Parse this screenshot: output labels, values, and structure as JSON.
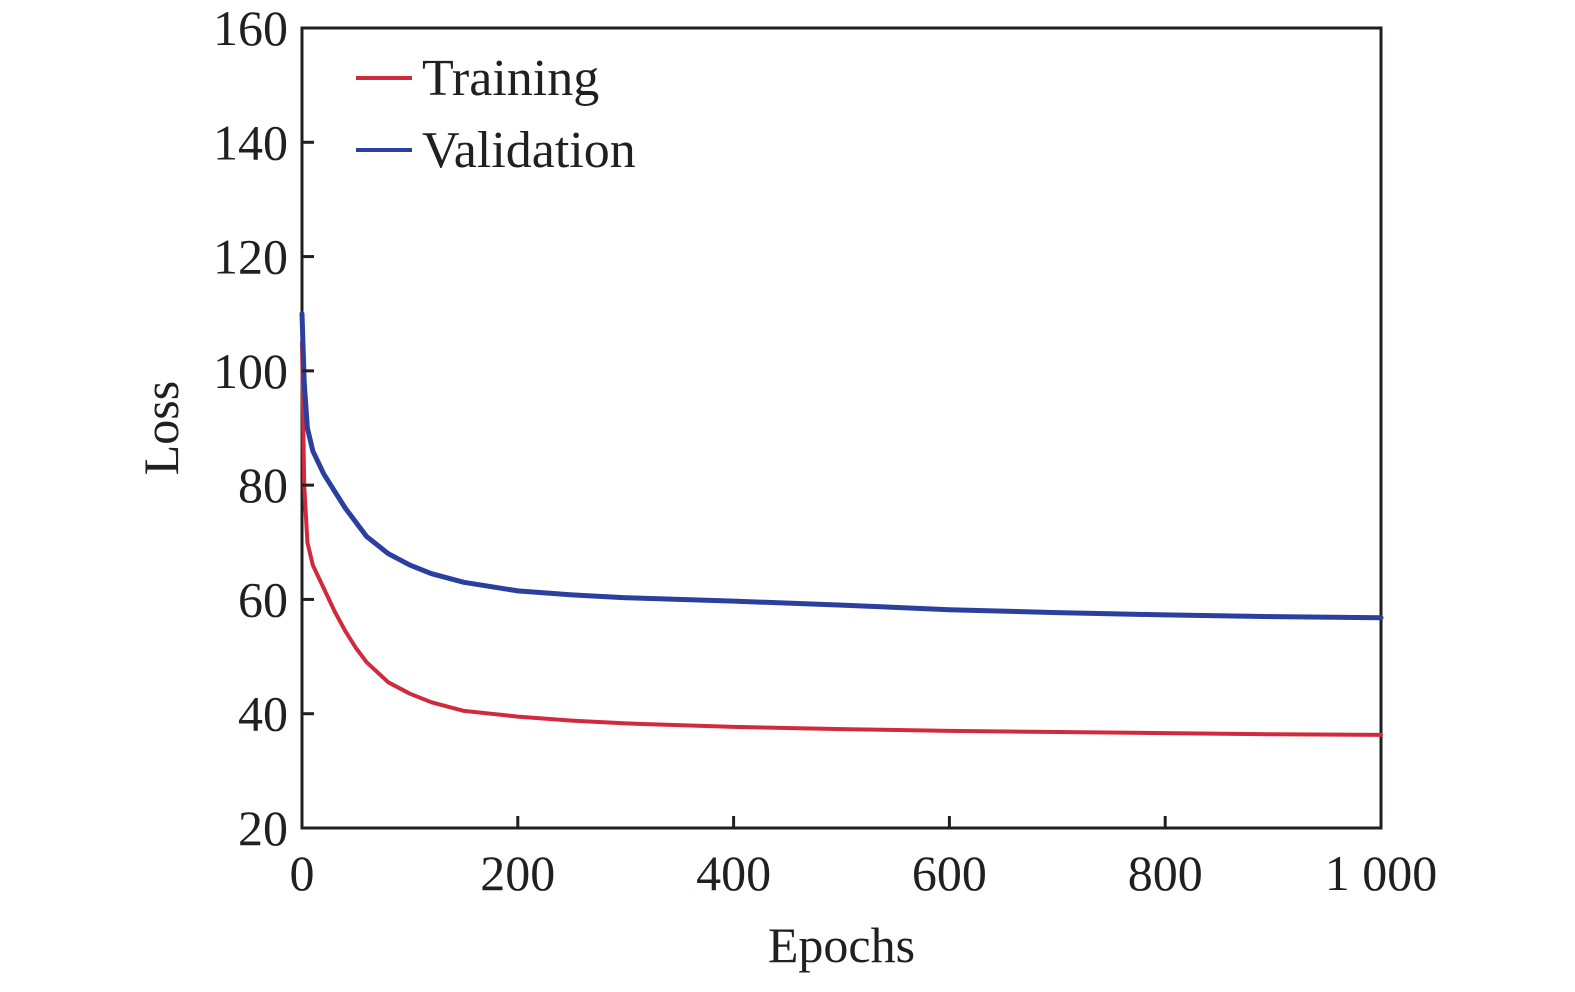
{
  "chart_data": {
    "type": "line",
    "title": "",
    "xlabel": "Epochs",
    "ylabel": "Loss",
    "xlim": [
      0,
      1000
    ],
    "ylim": [
      20,
      160
    ],
    "xticks": [
      0,
      200,
      400,
      600,
      800,
      1000
    ],
    "xtick_labels": [
      "0",
      "200",
      "400",
      "600",
      "800",
      "1 000"
    ],
    "yticks": [
      20,
      40,
      60,
      80,
      100,
      120,
      140,
      160
    ],
    "ytick_labels": [
      "20",
      "40",
      "60",
      "80",
      "100",
      "120",
      "140",
      "160"
    ],
    "grid": false,
    "legend_position": "top-left",
    "series": [
      {
        "name": "Training",
        "color": "#d12a3c",
        "x": [
          0,
          2,
          5,
          10,
          20,
          30,
          40,
          50,
          60,
          80,
          100,
          120,
          150,
          200,
          250,
          300,
          400,
          500,
          600,
          700,
          800,
          900,
          1000
        ],
        "values": [
          105,
          80,
          70,
          66,
          62,
          58,
          54.5,
          51.5,
          49,
          45.5,
          43.5,
          42,
          40.5,
          39.5,
          38.8,
          38.3,
          37.7,
          37.3,
          37,
          36.8,
          36.6,
          36.4,
          36.3
        ]
      },
      {
        "name": "Validation",
        "color": "#2b3f9e",
        "x": [
          0,
          2,
          5,
          10,
          20,
          30,
          40,
          50,
          60,
          80,
          100,
          120,
          150,
          200,
          250,
          300,
          400,
          500,
          600,
          700,
          800,
          900,
          1000
        ],
        "values": [
          110,
          98,
          90,
          86,
          82,
          79,
          76,
          73.5,
          71,
          68,
          66,
          64.5,
          63,
          61.5,
          60.8,
          60.3,
          59.7,
          59,
          58.2,
          57.7,
          57.3,
          57,
          56.8
        ]
      }
    ]
  }
}
